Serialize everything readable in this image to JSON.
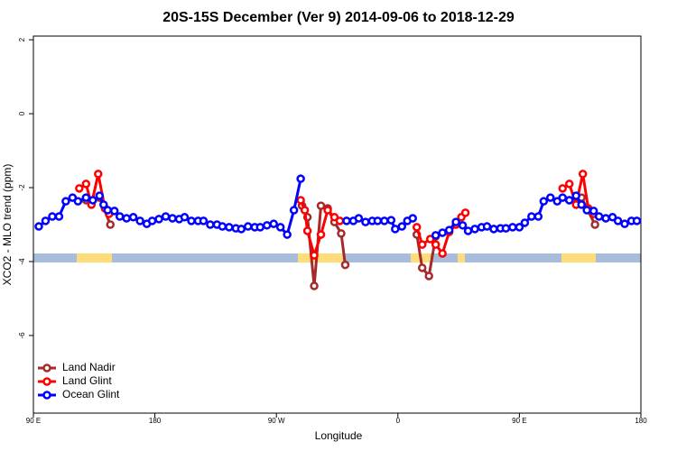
{
  "chart_data": {
    "type": "line",
    "title": "20S-15S December (Ver 9)   2014-09-06 to 2018-12-29",
    "x_label": "Longitude",
    "y_label": "XCO2 - MLO trend (ppm)",
    "xlim": [
      90,
      540
    ],
    "xticks": [
      {
        "value": 90,
        "label": "90 E"
      },
      {
        "value": 180,
        "label": "180"
      },
      {
        "value": 270,
        "label": "90 W"
      },
      {
        "value": 360,
        "label": "0"
      },
      {
        "value": 450,
        "label": "90 E"
      },
      {
        "value": 540,
        "label": "180"
      }
    ],
    "ylim": [
      -8.1,
      2.1
    ],
    "yticks": [
      2,
      0,
      -2,
      -4,
      -6
    ],
    "legend": "bottom-left",
    "series": [
      {
        "name": "Land Nadir",
        "color": "#a52a2a",
        "x": [
          129,
          139,
          147,
          null,
          289,
          293,
          298,
          303,
          308,
          313,
          318,
          321,
          null,
          374,
          378,
          383,
          388,
          null,
          487,
          496,
          506
        ],
        "values": [
          -2.34,
          -2.27,
          -3.0,
          null,
          -2.49,
          -2.8,
          -4.66,
          -2.49,
          -2.56,
          -2.93,
          -3.24,
          -4.09,
          null,
          -3.27,
          -4.17,
          -4.39,
          -3.32,
          null,
          -2.34,
          -2.27,
          -3.0
        ]
      },
      {
        "name": "Land Glint",
        "color": "#ff0000",
        "x": [
          124,
          129,
          133,
          138,
          143,
          146,
          null,
          288,
          291,
          293,
          298,
          303,
          308,
          313,
          317,
          null,
          374,
          378,
          384,
          388,
          393,
          398,
          403,
          407,
          410,
          null,
          482,
          487,
          492,
          497,
          501,
          505
        ],
        "values": [
          -2.02,
          -1.9,
          -2.46,
          -1.63,
          -2.56,
          -2.71,
          null,
          -2.34,
          -2.61,
          -3.17,
          -3.83,
          -3.27,
          -2.61,
          -2.8,
          -2.9,
          null,
          -3.07,
          -3.54,
          -3.39,
          -3.54,
          -3.78,
          -3.2,
          -3.0,
          -2.8,
          -2.68,
          null,
          -2.02,
          -1.9,
          -2.46,
          -1.63,
          -2.56,
          -2.71
        ]
      },
      {
        "name": "Ocean Glint",
        "color": "#0000ff",
        "x": [
          94,
          99,
          104,
          109,
          114,
          119,
          123,
          129,
          134,
          139,
          142,
          145,
          150,
          154,
          159,
          164,
          169,
          174,
          178,
          183,
          188,
          193,
          198,
          202,
          207,
          212,
          216,
          221,
          226,
          230,
          235,
          240,
          244,
          249,
          254,
          258,
          263,
          268,
          273,
          278,
          283,
          288,
          null,
          322,
          327,
          331,
          336,
          341,
          345,
          350,
          355,
          358,
          363,
          367,
          371,
          null,
          388,
          393,
          398,
          403,
          408,
          412,
          417,
          422,
          426,
          431,
          436,
          440,
          445,
          450,
          454,
          459,
          464,
          468,
          473,
          478,
          482,
          487,
          492,
          496,
          500,
          505,
          509,
          514,
          519,
          523,
          528,
          533,
          537
        ],
        "values": [
          -3.05,
          -2.9,
          -2.78,
          -2.78,
          -2.37,
          -2.27,
          -2.37,
          -2.27,
          -2.34,
          -2.22,
          -2.46,
          -2.61,
          -2.63,
          -2.78,
          -2.83,
          -2.8,
          -2.9,
          -2.98,
          -2.9,
          -2.85,
          -2.78,
          -2.83,
          -2.85,
          -2.8,
          -2.9,
          -2.9,
          -2.9,
          -3.0,
          -3.0,
          -3.05,
          -3.07,
          -3.1,
          -3.12,
          -3.05,
          -3.07,
          -3.07,
          -3.02,
          -2.98,
          -3.07,
          -3.27,
          -2.61,
          -1.76,
          null,
          -2.9,
          -2.9,
          -2.83,
          -2.93,
          -2.9,
          -2.9,
          -2.9,
          -2.88,
          -3.12,
          -3.05,
          -2.9,
          -2.83,
          null,
          -3.29,
          -3.22,
          -3.15,
          -2.93,
          -3.02,
          -3.17,
          -3.12,
          -3.07,
          -3.05,
          -3.12,
          -3.1,
          -3.1,
          -3.07,
          -3.07,
          -2.95,
          -2.78,
          -2.78,
          -2.37,
          -2.27,
          -2.37,
          -2.27,
          -2.34,
          -2.22,
          -2.46,
          -2.61,
          -2.63,
          -2.78,
          -2.83,
          -2.8,
          -2.9,
          -2.98,
          -2.9,
          -2.9
        ]
      }
    ]
  }
}
